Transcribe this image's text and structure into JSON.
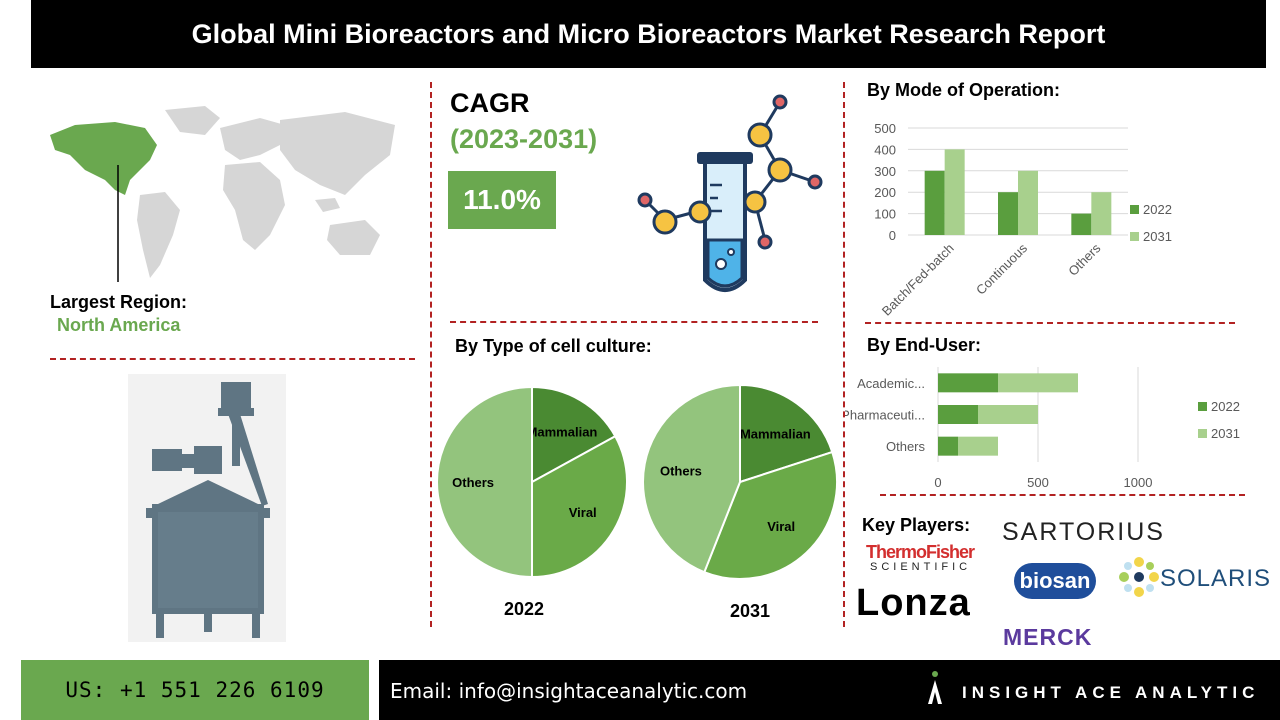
{
  "header": {
    "title": "Global Mini Bioreactors and Micro Bioreactors Market Research Report"
  },
  "region": {
    "label": "Largest Region:",
    "value": "North America"
  },
  "cagr": {
    "title": "CAGR",
    "period": "(2023-2031)",
    "value": "11.0%"
  },
  "mode_section": {
    "title": "By Mode of Operation:"
  },
  "cell_section": {
    "title": "By Type of cell culture:"
  },
  "enduser_section": {
    "title": "By End-User:"
  },
  "key_players": {
    "title": "Key Players:",
    "thermo_line1": "ThermoFisher",
    "thermo_line2": "SCIENTIFIC",
    "lonza": "Lonza",
    "sartorius": "SARTORIUS",
    "biosan": "biosan",
    "solaris": "SOLARIS",
    "merck": "MERCK"
  },
  "footer": {
    "phone": "US: +1 551 226 6109",
    "email": "Email: info@insightaceanalytic.com",
    "brand": "INSIGHT ACE ANALYTIC"
  },
  "colors": {
    "series_2022": "#5a9e3e",
    "series_2031": "#a8d08d",
    "accent_green": "#6aa84f",
    "dash_red": "#b22222"
  },
  "chart_data": [
    {
      "type": "bar",
      "categories": [
        "Batch/Fed-batch",
        "Continuous",
        "Others"
      ],
      "series": [
        {
          "name": "2022",
          "values": [
            300,
            200,
            100
          ]
        },
        {
          "name": "2031",
          "values": [
            400,
            300,
            200
          ]
        }
      ],
      "ylim": [
        0,
        500
      ],
      "yticks": [
        "0",
        "100",
        "200",
        "300",
        "400",
        "500"
      ],
      "grid": true,
      "legend": "right"
    },
    {
      "type": "bar",
      "orientation": "horizontal",
      "stacked": true,
      "categories": [
        "Academic...",
        "Pharmaceuti...",
        "Others"
      ],
      "series": [
        {
          "name": "2022",
          "values": [
            300,
            200,
            100
          ]
        },
        {
          "name": "2031",
          "values": [
            400,
            300,
            200
          ]
        }
      ],
      "xlim": [
        0,
        1000
      ],
      "xticks": [
        "0",
        "500",
        "1000"
      ],
      "grid": true,
      "legend": "right"
    },
    {
      "type": "pie",
      "title": "2022",
      "labels": [
        "Mammalian",
        "Viral",
        "Others"
      ],
      "values": [
        17,
        33,
        50
      ],
      "colors": [
        "#4a8a32",
        "#6aaa48",
        "#93c47d"
      ]
    },
    {
      "type": "pie",
      "title": "2031",
      "labels": [
        "Mammalian",
        "Viral",
        "Others"
      ],
      "values": [
        20,
        36,
        44
      ],
      "colors": [
        "#4a8a32",
        "#6aaa48",
        "#93c47d"
      ]
    }
  ]
}
